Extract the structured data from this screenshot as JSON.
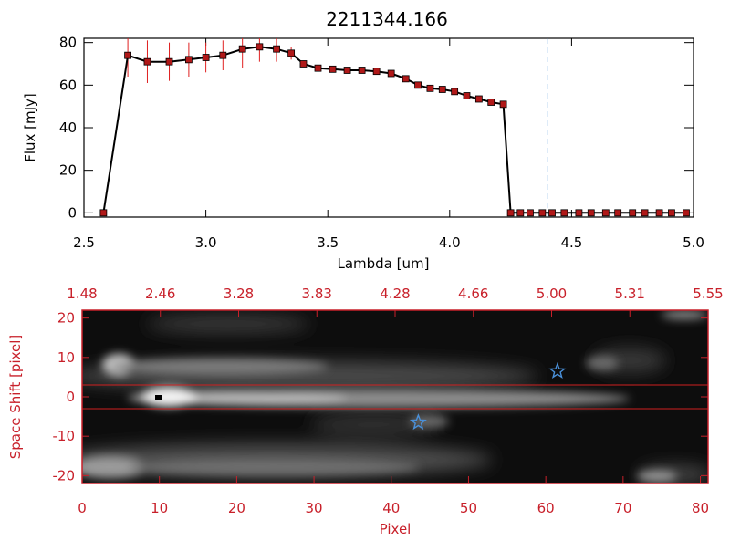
{
  "chart_data": [
    {
      "type": "line",
      "title": "2211344.166",
      "xlabel": "Lambda [um]",
      "ylabel": "Flux [mJy]",
      "xlim": [
        2.5,
        5.0
      ],
      "ylim": [
        -2,
        82
      ],
      "xticks": [
        "2.5",
        "3.0",
        "3.5",
        "4.0",
        "4.5",
        "5.0"
      ],
      "yticks": [
        "0",
        "20",
        "40",
        "60",
        "80"
      ],
      "grid": false,
      "legend": "none",
      "line_color": "#000000",
      "marker_color": "#b01818",
      "error_color": "#e02020",
      "marker_line": {
        "x": 4.4,
        "color": "#4a90d9"
      },
      "series": [
        {
          "x": [
            2.58,
            2.68,
            2.76,
            2.85,
            2.93,
            3.0,
            3.07,
            3.15,
            3.22,
            3.29,
            3.35,
            3.4,
            3.46,
            3.52,
            3.58,
            3.64,
            3.7,
            3.76,
            3.82,
            3.87,
            3.92,
            3.97,
            4.02,
            4.07,
            4.12,
            4.17,
            4.22,
            4.25,
            4.29,
            4.33,
            4.38,
            4.42,
            4.47,
            4.53,
            4.58,
            4.64,
            4.69,
            4.75,
            4.8,
            4.86,
            4.91,
            4.97
          ],
          "y": [
            0,
            74,
            71,
            71,
            72,
            73,
            74,
            77,
            78,
            77,
            75,
            70,
            68,
            67.5,
            67,
            67,
            66.5,
            65.5,
            63,
            60,
            58.5,
            58,
            57,
            55,
            53.5,
            52,
            51,
            0,
            0,
            0,
            0,
            0,
            0,
            0,
            0,
            0,
            0,
            0,
            0,
            0,
            0,
            0
          ],
          "err": [
            0,
            10,
            10,
            9,
            8,
            7,
            7,
            9,
            7,
            6,
            3,
            1,
            1,
            1,
            1,
            1,
            1,
            1,
            1,
            1,
            1,
            1,
            1,
            1,
            1,
            1,
            1,
            0,
            0,
            0,
            0,
            0,
            0,
            0,
            0,
            0,
            0,
            0,
            0,
            0,
            0,
            0
          ]
        }
      ]
    },
    {
      "type": "heatmap",
      "xlabel": "Pixel",
      "ylabel": "Space Shift [pixel]",
      "xlim": [
        0,
        81
      ],
      "ylim": [
        -22,
        22
      ],
      "xticks": [
        "0",
        "10",
        "20",
        "30",
        "40",
        "50",
        "60",
        "70",
        "80"
      ],
      "yticks": [
        "-20",
        "-10",
        "0",
        "10",
        "20"
      ],
      "top_axis_ticks": [
        "1.48",
        "2.46",
        "3.28",
        "3.83",
        "4.28",
        "4.66",
        "5.00",
        "5.31",
        "5.55"
      ],
      "axis_color": "#c8202a",
      "colormap": "grayscale",
      "extraction_window": [
        -3,
        3
      ],
      "stars": [
        {
          "x": 61.5,
          "y": 6.5
        },
        {
          "x": 43.5,
          "y": -6.5
        }
      ],
      "star_color": "#4a90d9"
    }
  ]
}
